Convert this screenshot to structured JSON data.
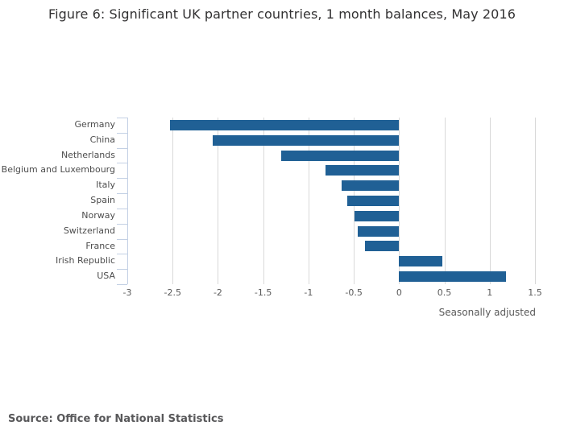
{
  "title": "Figure 6: Significant UK partner countries, 1 month balances, May 2016",
  "source": "Source: Office for National Statistics",
  "chart_data": {
    "type": "bar",
    "orientation": "horizontal",
    "title": "Figure 6: Significant UK partner countries, 1 month balances, May 2016",
    "categories": [
      "Germany",
      "China",
      "Netherlands",
      "Belgium and Luxembourg",
      "Italy",
      "Spain",
      "Norway",
      "Switzerland",
      "France",
      "Irish Republic",
      "USA"
    ],
    "values": [
      -2.53,
      -2.06,
      -1.3,
      -0.81,
      -0.63,
      -0.57,
      -0.49,
      -0.46,
      -0.38,
      0.48,
      1.18
    ],
    "xlabel": "Seasonally adjusted",
    "ylabel": "",
    "xlim": [
      -3,
      1.5
    ],
    "xticks": [
      -3,
      -2.5,
      -2,
      -1.5,
      -1,
      -0.5,
      0,
      0.5,
      1,
      1.5
    ],
    "grid": true,
    "legend": false,
    "bar_color": "#206095",
    "gridline_color": "#d9d9d9",
    "axis_color": "#c3d0e4",
    "tick_label_color": "#595959",
    "category_label_color": "#4d4d4d",
    "title_color": "#323132"
  }
}
